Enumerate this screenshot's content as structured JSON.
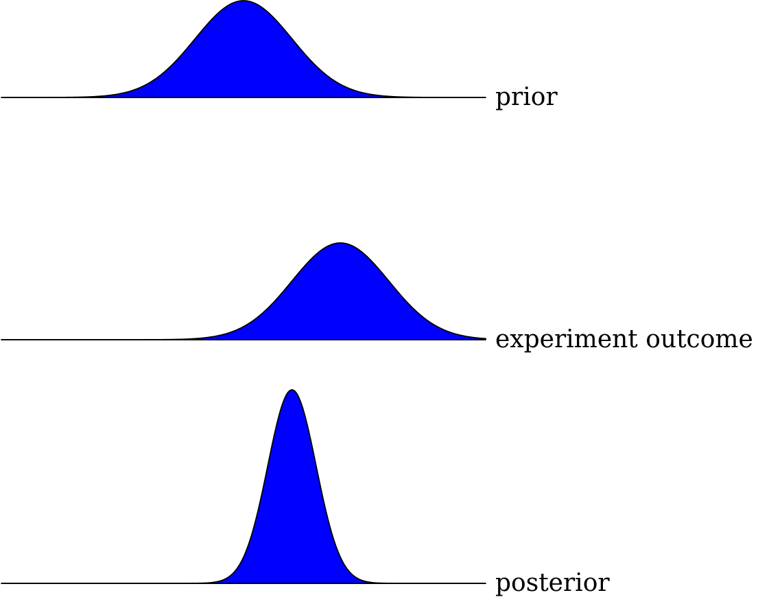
{
  "colors": {
    "fill": "#0000FF",
    "stroke": "#000000"
  },
  "distributions": [
    {
      "key": "prior",
      "label": "prior",
      "mean": 0.5,
      "sd": 0.1
    },
    {
      "key": "experiment",
      "label": "experiment outcome",
      "mean": 0.7,
      "sd": 0.1
    },
    {
      "key": "posterior",
      "label": "posterior",
      "mean": 0.6,
      "sd": 0.05
    }
  ]
}
